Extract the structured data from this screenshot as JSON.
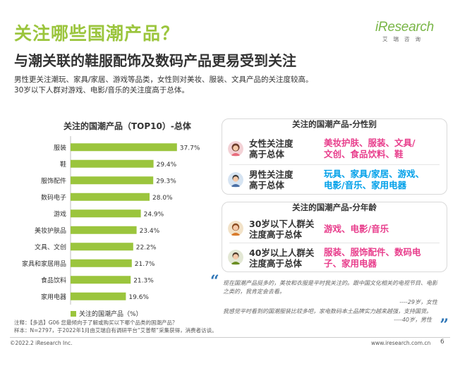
{
  "header": {
    "title": "关注哪些国潮产品？",
    "subtitle": "与潮关联的鞋服配饰及数码产品更易受到关注",
    "desc_lines": [
      "男性更关注潮玩、家具/家居、游戏等品类，女性则对美妆、服装、文具产品的关注度较高。",
      "30岁以下人群对游戏、电影/音乐的关注度高于总体。"
    ]
  },
  "logo": {
    "word": "iResearch",
    "sub": "艾瑞咨询"
  },
  "colors": {
    "accent": "#9bc53d",
    "female": "#e83e8c",
    "male": "#00a0e9",
    "young": "#e83e8c",
    "older": "#e83e8c"
  },
  "chart_data": {
    "type": "bar",
    "orientation": "horizontal",
    "title": "关注的国潮产品（TOP10）-总体",
    "categories": [
      "服装",
      "鞋",
      "服饰配件",
      "数码电子",
      "游戏",
      "美妆护肤品",
      "文具、文创",
      "家具和家居用品",
      "食品饮料",
      "家用电器"
    ],
    "series": [
      {
        "name": "关注的国潮产品（%）",
        "values": [
          37.7,
          29.4,
          29.3,
          28.0,
          24.9,
          23.4,
          22.2,
          21.7,
          21.3,
          19.6
        ]
      }
    ],
    "value_labels": [
      "37.7%",
      "29.4%",
      "29.3%",
      "28.0%",
      "24.9%",
      "23.4%",
      "22.2%",
      "21.7%",
      "21.3%",
      "19.6%"
    ],
    "xlim": [
      0,
      40
    ],
    "grid": false,
    "legend": "bottom",
    "color": "#9bc53d"
  },
  "gender_panel": {
    "title": "关注的国潮产品-分性别",
    "female": {
      "label_l1": "女性关注度",
      "label_l2": "高于总体",
      "value_l1": "美妆护肤、服装、文具/",
      "value_l2": "文创、食品饮料、鞋",
      "icon": "female-avatar-icon"
    },
    "male": {
      "label_l1": "男性关注度",
      "label_l2": "高于总体",
      "value_l1": "玩具、家具/家居、游戏、",
      "value_l2": "电影/音乐、家用电器",
      "icon": "male-avatar-icon"
    }
  },
  "age_panel": {
    "title": "关注的国潮产品-分年龄",
    "young": {
      "label_l1": "30岁以下人群关",
      "label_l2": "注度高于总体",
      "value_l1": "游戏、电影/音乐",
      "icon": "young-avatar-icon"
    },
    "older": {
      "label_l1": "40岁以上人群关",
      "label_l2": "注度高于总体",
      "value_l1": "服装、服饰配件、数码电",
      "value_l2": "子、家用电器",
      "icon": "older-avatar-icon"
    }
  },
  "quotes": {
    "q1": "现在国潮产品挺多的，美妆和衣服是平时我关注的。跟中国文化相关的电视节目、电影之类的，我肯定会去看。",
    "q1_sig": "----29岁，女性",
    "q2": "我感觉平时看到的国潮服装比较多吧，家电数码本土品牌实力越来越强，支持国货。",
    "q2_sig": "----40岁，男性"
  },
  "notes": {
    "line1": "注释：【多选】G06 您最倾向于了解或购买以下哪个品类的国潮产品？",
    "line2": "样本：N=2797，于2022年1月由艾瑞自有调研平台“艾普帮”采集获得，消费者访谈。"
  },
  "footer": {
    "copyright": "©2022.2 iResearch Inc.",
    "url": "www.iresearch.com.cn",
    "page": "6"
  }
}
